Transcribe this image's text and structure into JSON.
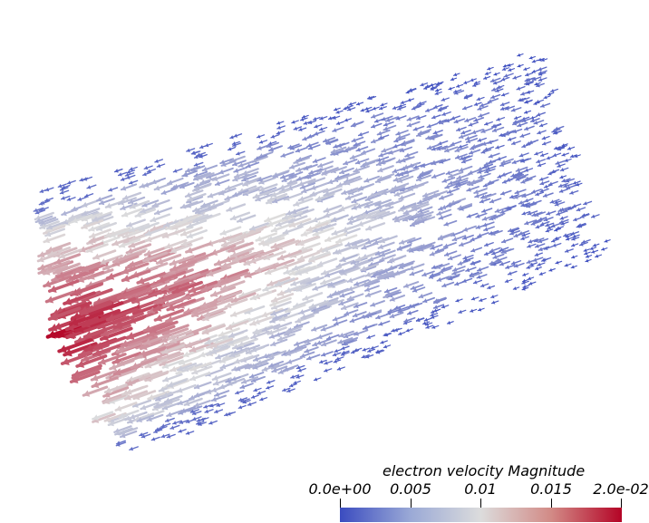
{
  "scene": {
    "description_kind": "3D vector glyph field",
    "colormap": {
      "low_color": "#3b4cc0",
      "mid_color": "#dddddd",
      "high_color": "#b40426"
    }
  },
  "colorbar": {
    "title": "electron velocity Magnitude",
    "tick_labels": [
      "0.0e+00",
      "0.005",
      "0.01",
      "0.015",
      "2.0e-02"
    ],
    "range": [
      0.0,
      0.02
    ]
  }
}
